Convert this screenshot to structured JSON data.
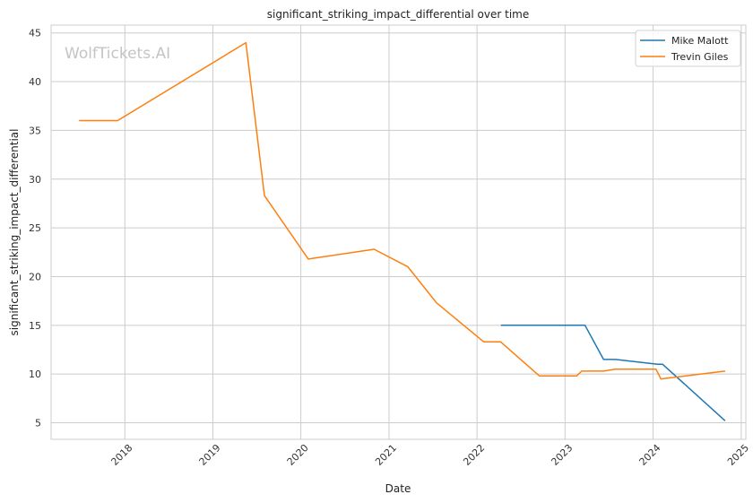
{
  "chart_data": {
    "type": "line",
    "title": "significant_striking_impact_differential over time",
    "xlabel": "Date",
    "ylabel": "significant_striking_impact_differential",
    "watermark": "WolfTickets.AI",
    "x_ticks": [
      "2018",
      "2019",
      "2020",
      "2021",
      "2022",
      "2023",
      "2024",
      "2025"
    ],
    "y_ticks": [
      5,
      10,
      15,
      20,
      25,
      30,
      35,
      40,
      45
    ],
    "xlim": [
      "2017-03-01",
      "2025-01-20"
    ],
    "ylim": [
      3.3,
      45.8
    ],
    "grid": true,
    "legend_position": "top-right",
    "series": [
      {
        "name": "Mike Malott",
        "color": "#1f77b4",
        "points": [
          [
            "2022-04-10",
            15.0
          ],
          [
            "2023-03-25",
            15.0
          ],
          [
            "2023-06-10",
            11.5
          ],
          [
            "2023-07-29",
            11.5
          ],
          [
            "2024-01-20",
            11.0
          ],
          [
            "2024-02-10",
            11.0
          ],
          [
            "2024-10-26",
            5.2
          ]
        ]
      },
      {
        "name": "Trevin Giles",
        "color": "#ff7f0e",
        "points": [
          [
            "2017-06-25",
            36.0
          ],
          [
            "2017-12-02",
            36.0
          ],
          [
            "2019-05-18",
            44.0
          ],
          [
            "2019-08-03",
            28.3
          ],
          [
            "2020-02-01",
            21.8
          ],
          [
            "2020-10-31",
            22.8
          ],
          [
            "2021-03-20",
            21.0
          ],
          [
            "2021-07-17",
            17.3
          ],
          [
            "2022-01-29",
            13.3
          ],
          [
            "2022-04-09",
            13.3
          ],
          [
            "2022-09-17",
            9.8
          ],
          [
            "2023-02-18",
            9.8
          ],
          [
            "2023-03-11",
            10.3
          ],
          [
            "2023-06-10",
            10.3
          ],
          [
            "2023-07-29",
            10.5
          ],
          [
            "2024-01-13",
            10.5
          ],
          [
            "2024-02-03",
            9.5
          ],
          [
            "2024-10-26",
            10.3
          ]
        ]
      }
    ]
  }
}
